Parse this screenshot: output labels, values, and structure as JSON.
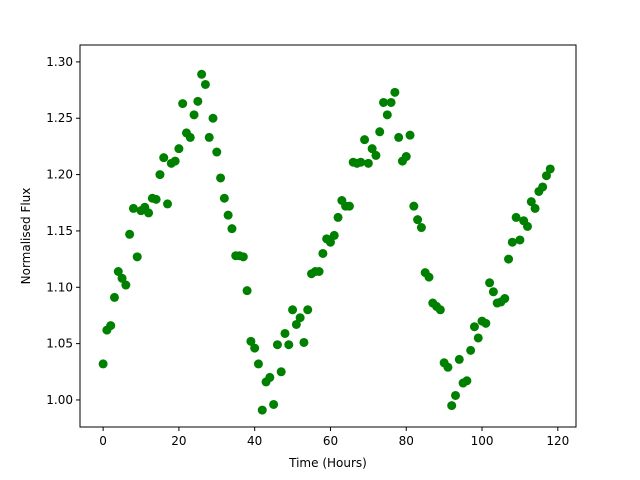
{
  "chart_data": {
    "type": "scatter",
    "x_label": "Time (Hours)",
    "y_label": "Normalised Flux",
    "x": [
      0,
      1,
      2,
      3,
      4,
      5,
      6,
      7,
      8,
      9,
      10,
      11,
      12,
      13,
      14,
      15,
      16,
      17,
      18,
      19,
      20,
      21,
      22,
      23,
      24,
      25,
      26,
      27,
      28,
      29,
      30,
      31,
      32,
      33,
      34,
      35,
      36,
      37,
      38,
      39,
      40,
      41,
      42,
      43,
      44,
      45,
      46,
      47,
      48,
      49,
      50,
      51,
      52,
      53,
      54,
      55,
      56,
      57,
      58,
      59,
      60,
      61,
      62,
      63,
      64,
      65,
      66,
      67,
      68,
      69,
      70,
      71,
      72,
      73,
      74,
      75,
      76,
      77,
      78,
      79,
      80,
      81,
      82,
      83,
      84,
      85,
      86,
      87,
      88,
      89,
      90,
      91,
      92,
      93,
      94,
      95,
      96,
      97,
      98,
      99,
      100,
      101,
      102,
      103,
      104,
      105,
      106,
      107,
      108,
      109,
      110,
      111,
      112,
      113,
      114,
      115,
      116,
      117,
      118
    ],
    "series": [
      {
        "color": "#008000",
        "values": [
          1.032,
          1.062,
          1.066,
          1.091,
          1.114,
          1.108,
          1.102,
          1.147,
          1.17,
          1.127,
          1.168,
          1.171,
          1.166,
          1.179,
          1.178,
          1.2,
          1.215,
          1.174,
          1.21,
          1.212,
          1.223,
          1.263,
          1.237,
          1.233,
          1.253,
          1.265,
          1.289,
          1.28,
          1.233,
          1.25,
          1.22,
          1.197,
          1.179,
          1.164,
          1.152,
          1.128,
          1.128,
          1.127,
          1.097,
          1.052,
          1.046,
          1.032,
          0.991,
          1.016,
          1.02,
          0.996,
          1.049,
          1.025,
          1.059,
          1.049,
          1.08,
          1.067,
          1.073,
          1.051,
          1.08,
          1.112,
          1.114,
          1.114,
          1.13,
          1.143,
          1.14,
          1.146,
          1.162,
          1.177,
          1.172,
          1.172,
          1.211,
          1.21,
          1.211,
          1.231,
          1.21,
          1.223,
          1.217,
          1.238,
          1.264,
          1.253,
          1.264,
          1.273,
          1.233,
          1.212,
          1.216,
          1.235,
          1.172,
          1.16,
          1.153,
          1.113,
          1.109,
          1.086,
          1.083,
          1.08,
          1.033,
          1.029,
          0.995,
          1.004,
          1.036,
          1.015,
          1.017,
          1.044,
          1.065,
          1.055,
          1.07,
          1.068,
          1.104,
          1.096,
          1.086,
          1.087,
          1.09,
          1.125,
          1.14,
          1.162,
          1.142,
          1.159,
          1.154,
          1.176,
          1.17,
          1.185,
          1.189,
          1.199,
          1.205
        ]
      }
    ],
    "xlim": [
      -6.1,
      124.8
    ],
    "ylim": [
      0.976,
      1.315
    ],
    "xticks": [
      0,
      20,
      40,
      60,
      80,
      100,
      120
    ],
    "yticks": [
      {
        "value": 1.0,
        "label": "1.00"
      },
      {
        "value": 1.05,
        "label": "1.05"
      },
      {
        "value": 1.1,
        "label": "1.10"
      },
      {
        "value": 1.15,
        "label": "1.15"
      },
      {
        "value": 1.2,
        "label": "1.20"
      },
      {
        "value": 1.25,
        "label": "1.25"
      },
      {
        "value": 1.3,
        "label": "1.30"
      }
    ],
    "grid": false
  }
}
